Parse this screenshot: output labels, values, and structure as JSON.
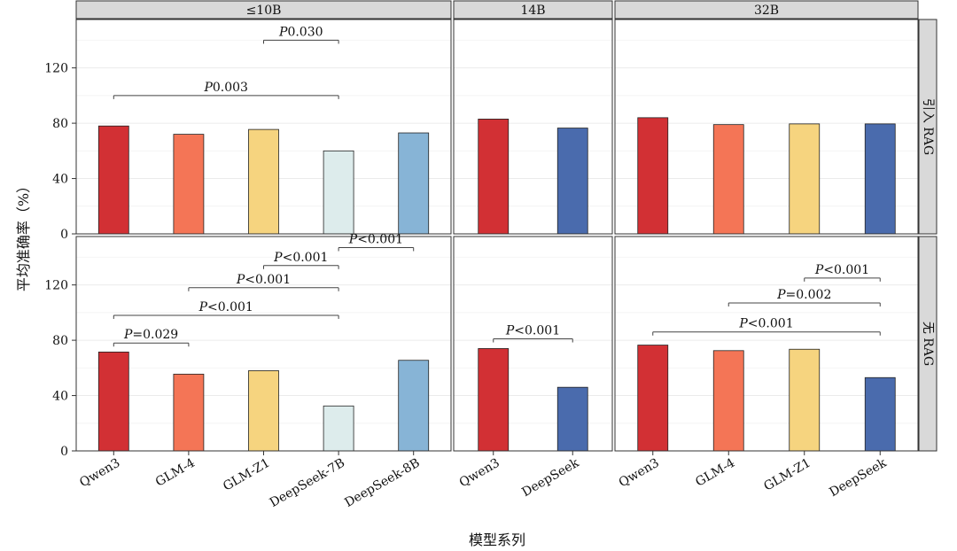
{
  "chart_data": {
    "type": "bar",
    "xlabel": "模型系列",
    "ylabel": "平均准确率（%）",
    "ylim": [
      0,
      155
    ],
    "yticks": [
      0,
      40,
      80,
      120
    ],
    "grid": true,
    "legend": "none",
    "columns": [
      {
        "name": "≤10B",
        "categories": [
          "Qwen3",
          "GLM-4",
          "GLM-Z1",
          "DeepSeek-7B",
          "DeepSeek-8B"
        ],
        "colors": [
          "#d23034",
          "#f47556",
          "#f6d47f",
          "#ddecec",
          "#87b4d6"
        ]
      },
      {
        "name": "14B",
        "categories": [
          "Qwen3",
          "DeepSeek"
        ],
        "colors": [
          "#d23034",
          "#4a6bad"
        ]
      },
      {
        "name": "32B",
        "categories": [
          "Qwen3",
          "GLM-4",
          "GLM-Z1",
          "DeepSeek"
        ],
        "colors": [
          "#d23034",
          "#f47556",
          "#f6d47f",
          "#4a6bad"
        ]
      }
    ],
    "rows": [
      {
        "name": "引入 RAG",
        "values": [
          [
            78,
            72,
            75.5,
            60,
            73
          ],
          [
            83,
            76.5
          ],
          [
            84,
            79,
            79.5,
            79.5
          ]
        ],
        "comparisons": [
          {
            "column": 0,
            "from": 3,
            "to": 4,
            "y": 140,
            "p": "0.030"
          },
          {
            "column": 0,
            "from": 1,
            "to": 4,
            "y": 100,
            "p": "0.003"
          }
        ]
      },
      {
        "name": "无 RAG",
        "values": [
          [
            71.5,
            55.5,
            58,
            32.5,
            65.5
          ],
          [
            74,
            46
          ],
          [
            76.5,
            72.5,
            73.5,
            53
          ]
        ],
        "comparisons": [
          {
            "column": 0,
            "from": 4,
            "to": 5,
            "y": 147,
            "p": "<0.001"
          },
          {
            "column": 0,
            "from": 3,
            "to": 4,
            "y": 134,
            "p": "<0.001"
          },
          {
            "column": 0,
            "from": 2,
            "to": 4,
            "y": 118,
            "p": "<0.001"
          },
          {
            "column": 0,
            "from": 1,
            "to": 4,
            "y": 98,
            "p": "<0.001"
          },
          {
            "column": 0,
            "from": 1,
            "to": 2,
            "y": 78,
            "p": "=0.029"
          },
          {
            "column": 1,
            "from": 1,
            "to": 2,
            "y": 81,
            "p": "<0.001"
          },
          {
            "column": 2,
            "from": 3,
            "to": 4,
            "y": 125,
            "p": "<0.001"
          },
          {
            "column": 2,
            "from": 2,
            "to": 4,
            "y": 107,
            "p": "=0.002"
          },
          {
            "column": 2,
            "from": 1,
            "to": 4,
            "y": 86,
            "p": "<0.001"
          }
        ]
      }
    ]
  }
}
